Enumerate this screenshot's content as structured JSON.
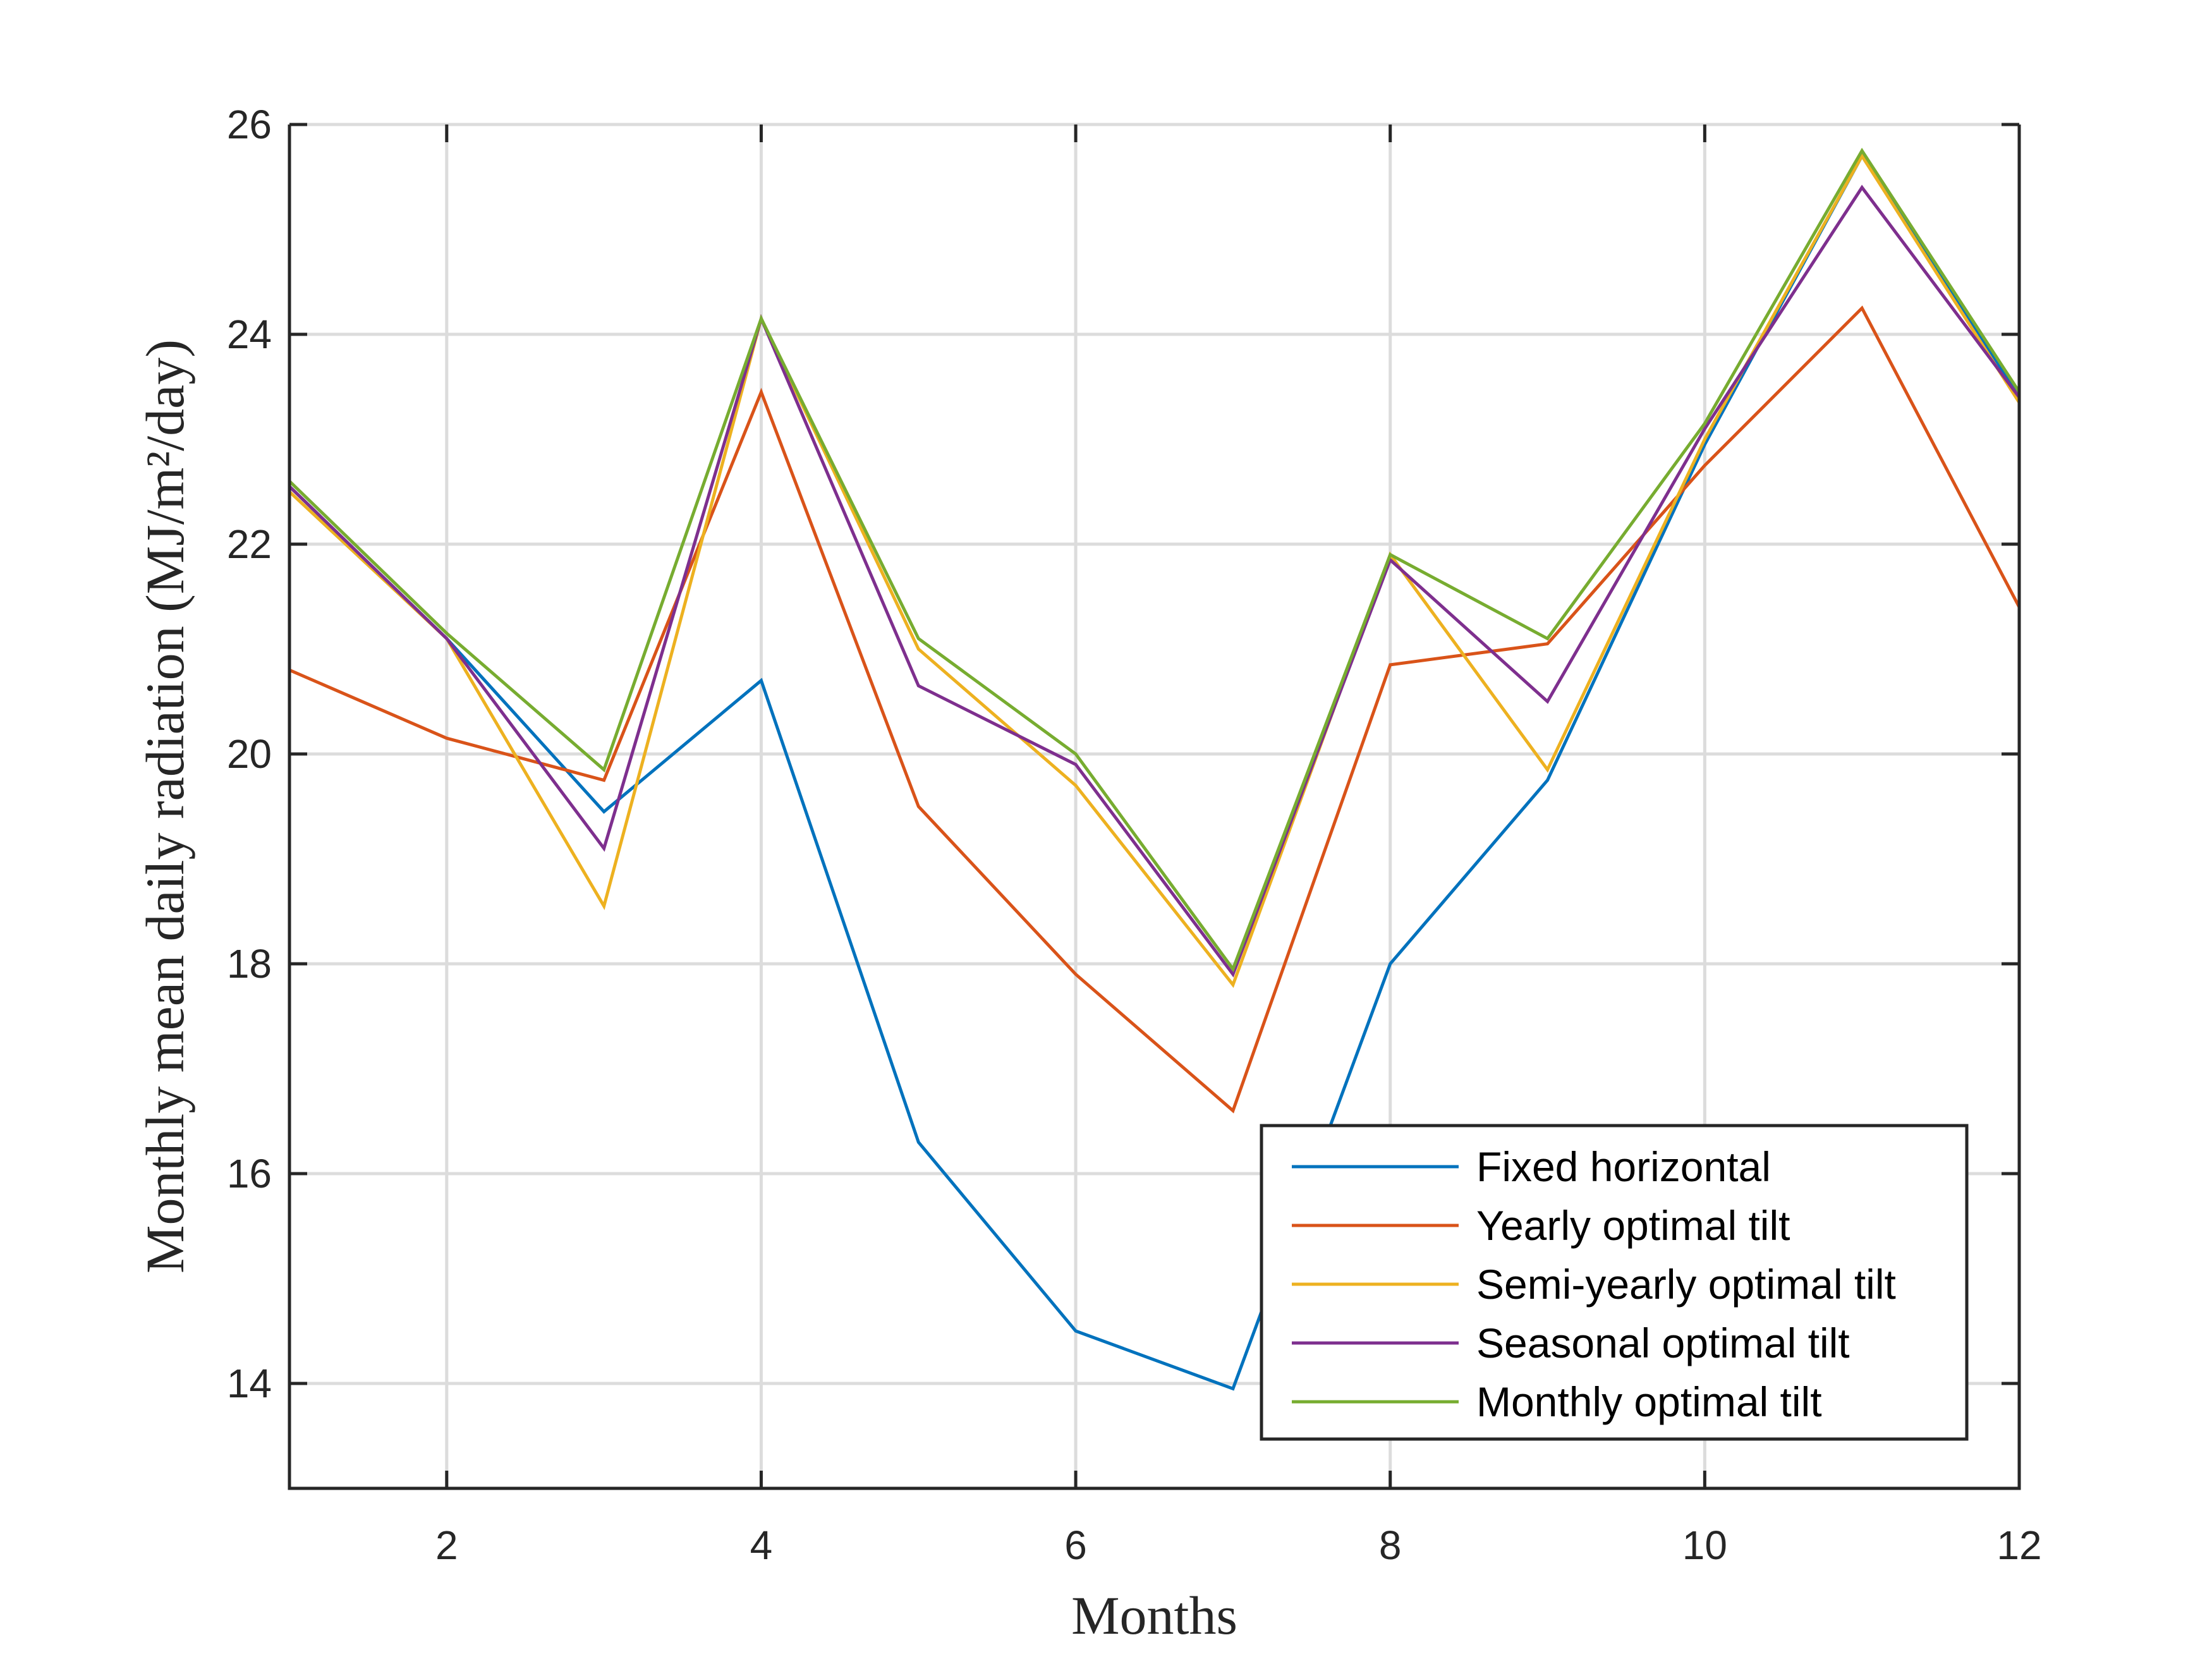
{
  "chart_data": {
    "type": "line",
    "title": "",
    "xlabel": "Months",
    "ylabel": "Monthly mean daily radiation (MJ/m²/day)",
    "xlim": [
      1,
      12
    ],
    "ylim": [
      13,
      26
    ],
    "xticks": [
      2,
      4,
      6,
      8,
      10,
      12
    ],
    "yticks": [
      14,
      16,
      18,
      20,
      22,
      24,
      26
    ],
    "grid": true,
    "legend_position": "bottom-right",
    "x": [
      1,
      2,
      3,
      4,
      5,
      6,
      7,
      8,
      9,
      10,
      11,
      12
    ],
    "series": [
      {
        "name": "Fixed horizontal",
        "color": "#0072BD",
        "values": [
          22.55,
          21.1,
          19.45,
          20.7,
          16.3,
          14.5,
          13.95,
          18.0,
          19.75,
          22.95,
          25.7,
          23.4
        ]
      },
      {
        "name": "Yearly optimal tilt",
        "color": "#D95319",
        "values": [
          20.8,
          20.15,
          19.75,
          23.45,
          19.5,
          17.9,
          16.6,
          20.85,
          21.05,
          22.75,
          24.25,
          21.4
        ]
      },
      {
        "name": "Semi-yearly optimal tilt",
        "color": "#EDB120",
        "values": [
          22.5,
          21.1,
          18.55,
          24.15,
          21.0,
          19.7,
          17.8,
          21.9,
          19.85,
          23.0,
          25.7,
          23.35
        ]
      },
      {
        "name": "Seasonal optimal tilt",
        "color": "#7E2F8E",
        "values": [
          22.55,
          21.1,
          19.1,
          24.15,
          20.65,
          19.9,
          17.9,
          21.85,
          20.5,
          23.1,
          25.4,
          23.4
        ]
      },
      {
        "name": "Monthly optimal tilt",
        "color": "#77AC30",
        "values": [
          22.6,
          21.15,
          19.85,
          24.15,
          21.1,
          20.0,
          17.95,
          21.9,
          21.1,
          23.15,
          25.75,
          23.45
        ]
      }
    ]
  }
}
